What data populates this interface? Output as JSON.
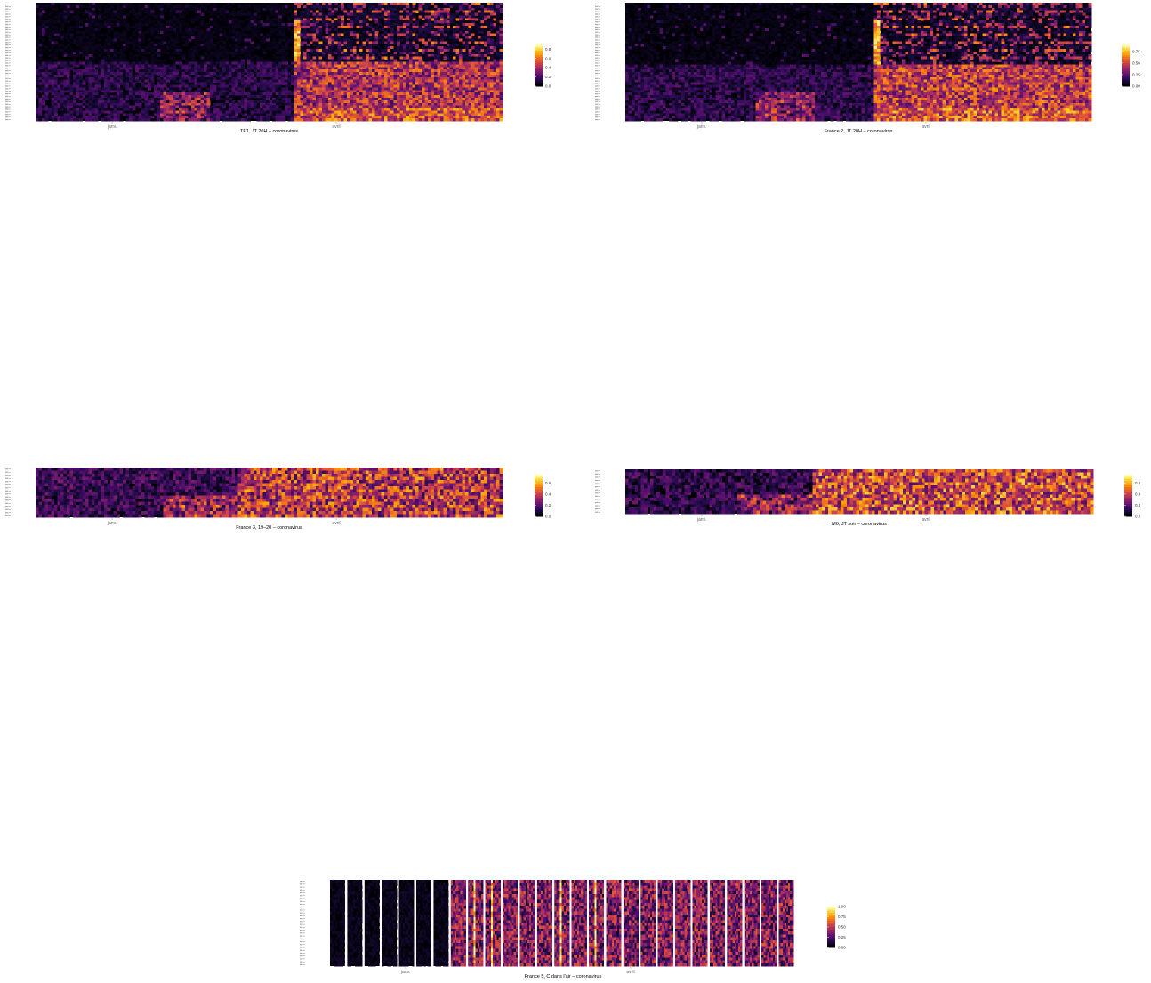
{
  "colors": {
    "scale": [
      "#000004",
      "#1b0c41",
      "#4a0c6b",
      "#781c6d",
      "#a52c60",
      "#cf4446",
      "#ed6925",
      "#fb9b06",
      "#f7d13d",
      "#fcffa4"
    ],
    "background": "#ffffff",
    "text": "#333333"
  },
  "chart_data": [
    {
      "type": "heatmap",
      "title": "TF1, JT 20H – coronavirus",
      "xlabel": "",
      "ylabel": "",
      "x_ticks": [
        "janv.",
        "avril"
      ],
      "legend_ticks": [
        "0.0",
        "0.2",
        "0.4",
        "0.6",
        "0.8"
      ],
      "value_range": [
        0,
        0.9
      ],
      "description_of_values": {
        "n_rows": 46,
        "n_cols": 150,
        "onset_col": 83,
        "onset_rows_top": 23,
        "pre_onset_mean": 0.09,
        "post_onset_mean": 0.34,
        "early_hotspot_cols": [
          40,
          55
        ]
      }
    },
    {
      "type": "heatmap",
      "title": "France 2, JT 20H – coronavirus",
      "xlabel": "",
      "ylabel": "",
      "x_ticks": [
        "janv.",
        "avril"
      ],
      "legend_ticks": [
        "0.00",
        "0.25",
        "0.50",
        "0.75"
      ],
      "value_range": [
        0,
        0.9
      ],
      "description_of_values": {
        "n_rows": 46,
        "n_cols": 150,
        "onset_col": 80,
        "onset_rows_top": 24,
        "pre_onset_mean": 0.1,
        "post_onset_mean": 0.38,
        "early_hotspot_cols": [
          42,
          60
        ]
      }
    },
    {
      "type": "heatmap",
      "title": "France 3, 19–20 – coronavirus",
      "xlabel": "",
      "ylabel": "",
      "x_ticks": [
        "janv.",
        "avril"
      ],
      "legend_ticks": [
        "0.0",
        "0.2",
        "0.4",
        "0.6"
      ],
      "value_range": [
        0,
        0.75
      ],
      "description_of_values": {
        "n_rows": 16,
        "n_cols": 150,
        "onset_col": 65,
        "pre_onset_mean": 0.12,
        "post_onset_mean": 0.3
      }
    },
    {
      "type": "heatmap",
      "title": "M6, JT soir – coronavirus",
      "xlabel": "",
      "ylabel": "",
      "x_ticks": [
        "janv.",
        "avril"
      ],
      "legend_ticks": [
        "0.0",
        "0.2",
        "0.4",
        "0.6"
      ],
      "value_range": [
        0,
        0.75
      ],
      "description_of_values": {
        "n_rows": 14,
        "n_cols": 150,
        "onset_col": 60,
        "pre_onset_mean": 0.1,
        "post_onset_mean": 0.35
      }
    },
    {
      "type": "heatmap",
      "title": "France 5, C dans l'air – coronavirus",
      "xlabel": "",
      "ylabel": "",
      "x_ticks": [
        "janv.",
        "avril"
      ],
      "legend_ticks": [
        "0.00",
        "0.25",
        "0.50",
        "0.75",
        "1.00"
      ],
      "value_range": [
        0,
        1.0
      ],
      "description_of_values": {
        "n_rows": 30,
        "n_facets": 27,
        "active_from_facet": 7,
        "pre_onset_mean": 0.04,
        "post_onset_mean": 0.32
      }
    }
  ]
}
